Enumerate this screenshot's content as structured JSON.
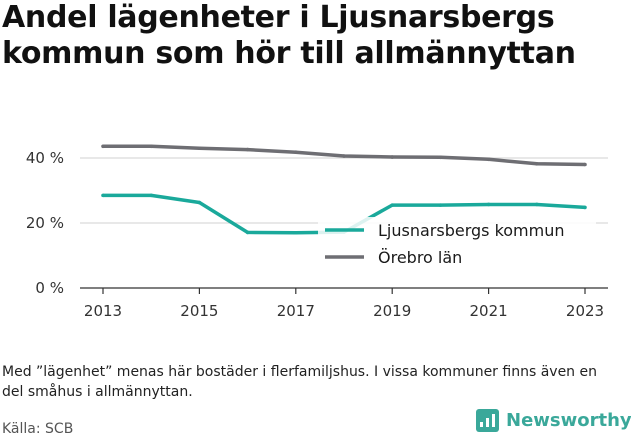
{
  "chart_data": {
    "type": "line",
    "title": "Andel lägenheter i Ljusnarsbergs kommun som hör till allmännyttan",
    "xlabel": "",
    "ylabel": "",
    "x": [
      2013,
      2014,
      2015,
      2016,
      2017,
      2018,
      2019,
      2020,
      2021,
      2022,
      2023
    ],
    "x_ticks": [
      "2013",
      "2015",
      "2017",
      "2019",
      "2021",
      "2023"
    ],
    "y_ticks": [
      "0 %",
      "20 %",
      "40 %"
    ],
    "ylim": [
      0,
      45
    ],
    "grid": "horizontal",
    "legend_position": "right, over plot",
    "series": [
      {
        "name": "Ljusnarsbergs kommun",
        "color": "#1aa99b",
        "values": [
          28.5,
          28.5,
          26.3,
          17.1,
          17.0,
          17.2,
          25.5,
          25.5,
          25.7,
          25.7,
          24.8
        ]
      },
      {
        "name": "Örebro län",
        "color": "#6e6e73",
        "values": [
          43.6,
          43.6,
          43.0,
          42.6,
          41.8,
          40.6,
          40.3,
          40.2,
          39.6,
          38.2,
          38.0
        ]
      }
    ]
  },
  "footer": {
    "note": "Med ”lägenhet” menas här bostäder i flerfamiljshus. I vissa kommuner finns även en del småhus i allmännyttan.",
    "source": "Källa: SCB",
    "brand": "Newsworthy"
  },
  "colors": {
    "brand": "#3aa89a",
    "grid": "#d9d9d9",
    "axis": "#333333"
  }
}
